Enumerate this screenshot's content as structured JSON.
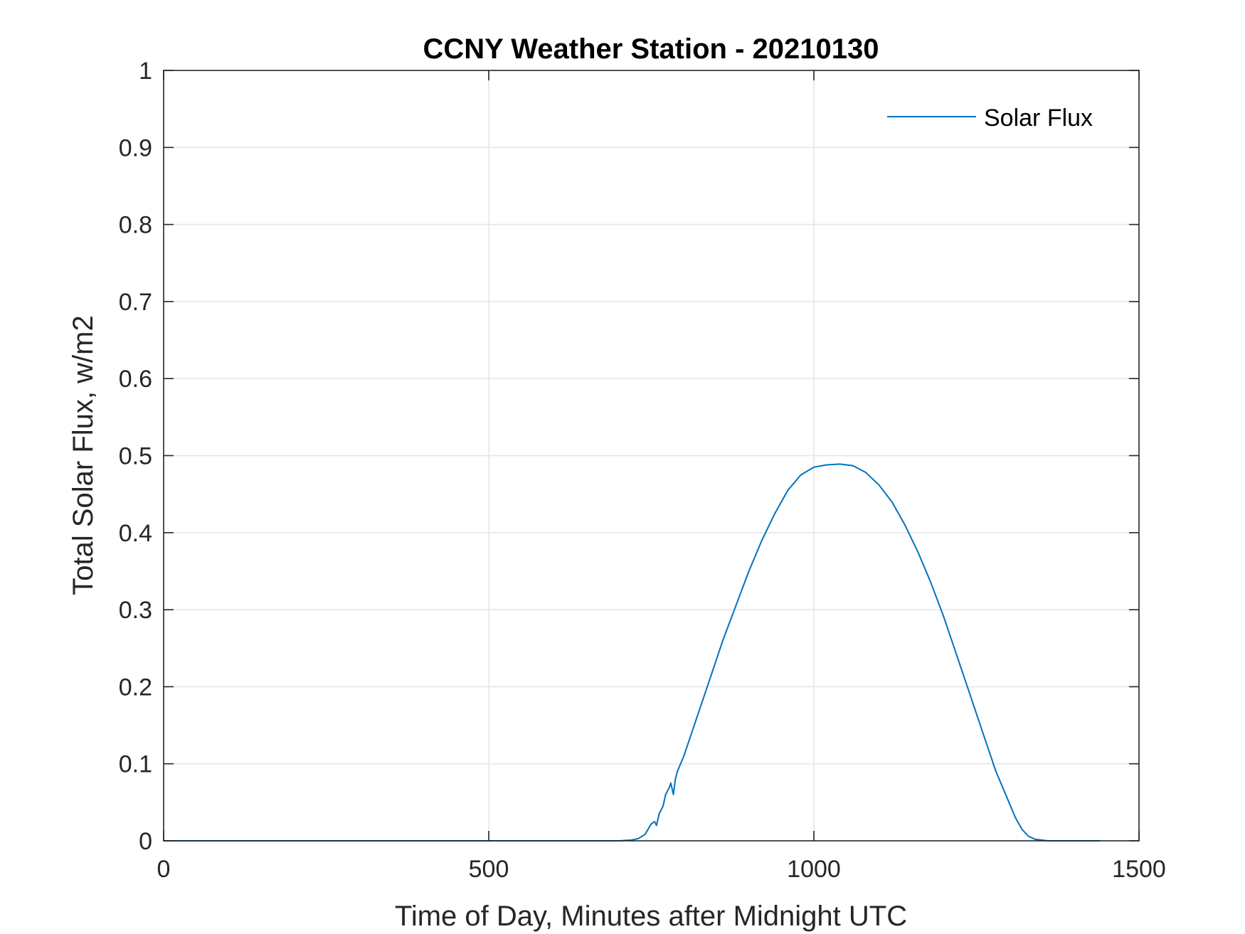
{
  "chart_data": {
    "type": "line",
    "title": "CCNY Weather Station - 20210130",
    "xlabel": "Time of Day, Minutes after Midnight UTC",
    "ylabel": "Total Solar Flux, w/m2",
    "xlim": [
      0,
      1500
    ],
    "ylim": [
      0,
      1
    ],
    "xticks": [
      0,
      500,
      1000,
      1500
    ],
    "xtick_labels": [
      "0",
      "500",
      "1000",
      "1500"
    ],
    "yticks": [
      0,
      0.1,
      0.2,
      0.3,
      0.4,
      0.5,
      0.6,
      0.7,
      0.8,
      0.9,
      1
    ],
    "ytick_labels": [
      "0",
      "0.1",
      "0.2",
      "0.3",
      "0.4",
      "0.5",
      "0.6",
      "0.7",
      "0.8",
      "0.9",
      "1"
    ],
    "grid": true,
    "legend": {
      "position": "top-right",
      "entries": [
        "Solar Flux"
      ]
    },
    "colors": {
      "series": "#0072BD",
      "grid": "#e6e6e6",
      "axis": "#262626"
    },
    "series": [
      {
        "name": "Solar Flux",
        "x": [
          0,
          100,
          200,
          300,
          400,
          500,
          600,
          700,
          720,
          730,
          740,
          745,
          750,
          755,
          758,
          762,
          765,
          768,
          772,
          775,
          778,
          780,
          784,
          787,
          790,
          800,
          820,
          840,
          860,
          880,
          900,
          920,
          940,
          960,
          980,
          1000,
          1020,
          1040,
          1060,
          1080,
          1100,
          1120,
          1140,
          1160,
          1180,
          1200,
          1220,
          1240,
          1260,
          1280,
          1300,
          1310,
          1320,
          1330,
          1340,
          1350,
          1360,
          1380,
          1400,
          1440
        ],
        "values": [
          0,
          0,
          0,
          0,
          0,
          0,
          0,
          0,
          0.001,
          0.003,
          0.008,
          0.015,
          0.022,
          0.025,
          0.02,
          0.035,
          0.04,
          0.045,
          0.06,
          0.065,
          0.07,
          0.075,
          0.06,
          0.08,
          0.09,
          0.11,
          0.16,
          0.21,
          0.26,
          0.305,
          0.35,
          0.39,
          0.425,
          0.455,
          0.475,
          0.485,
          0.488,
          0.489,
          0.487,
          0.478,
          0.462,
          0.44,
          0.41,
          0.375,
          0.335,
          0.29,
          0.24,
          0.19,
          0.14,
          0.09,
          0.05,
          0.03,
          0.015,
          0.006,
          0.002,
          0.001,
          0,
          0,
          0,
          0
        ]
      }
    ]
  }
}
